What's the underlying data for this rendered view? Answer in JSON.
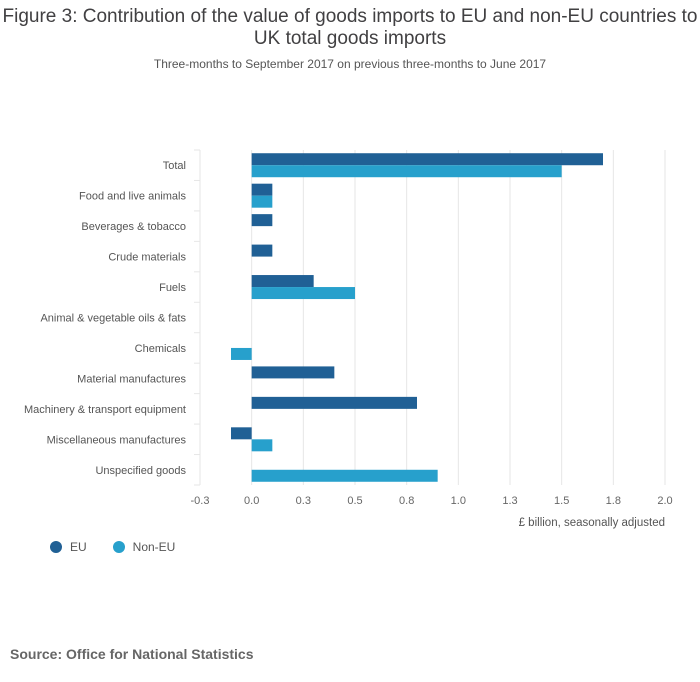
{
  "colors": {
    "eu": "#206095",
    "non_eu": "#27a0cc",
    "grid": "#e6e6e6",
    "axis": "#cccccc"
  },
  "source": "Source: Office for National Statistics",
  "chart_data": {
    "type": "bar",
    "orientation": "horizontal",
    "title": "Figure 3: Contribution of the value of goods imports to EU and non-EU countries to UK total goods imports",
    "subtitle": "Three-months to September 2017 on previous three-months to June 2017",
    "xlabel": "£ billion, seasonally adjusted",
    "ylabel": "",
    "xlim": [
      -0.25,
      2.0
    ],
    "ticks": [
      -0.25,
      0,
      0.25,
      0.5,
      0.75,
      1.0,
      1.25,
      1.5,
      1.75,
      2.0
    ],
    "tick_labels": [
      "-0.3",
      "0.0",
      "0.3",
      "0.5",
      "0.8",
      "1.0",
      "1.3",
      "1.5",
      "1.8",
      "2.0"
    ],
    "grid": true,
    "legend_position": "bottom-left",
    "categories": [
      "Total",
      "Food and live animals",
      "Beverages & tobacco",
      "Crude materials",
      "Fuels",
      "Animal & vegetable oils & fats",
      "Chemicals",
      "Material manufactures",
      "Machinery & transport equipment",
      "Miscellaneous manufactures",
      "Unspecified goods"
    ],
    "series": [
      {
        "name": "EU",
        "color": "#206095",
        "values": [
          1.7,
          0.1,
          0.1,
          0.1,
          0.3,
          0.0,
          0.0,
          0.4,
          0.8,
          -0.1,
          0.0
        ]
      },
      {
        "name": "Non-EU",
        "color": "#27a0cc",
        "values": [
          1.5,
          0.1,
          0.0,
          0.0,
          0.5,
          0.0,
          -0.1,
          0.0,
          0.0,
          0.1,
          0.9
        ]
      }
    ]
  }
}
